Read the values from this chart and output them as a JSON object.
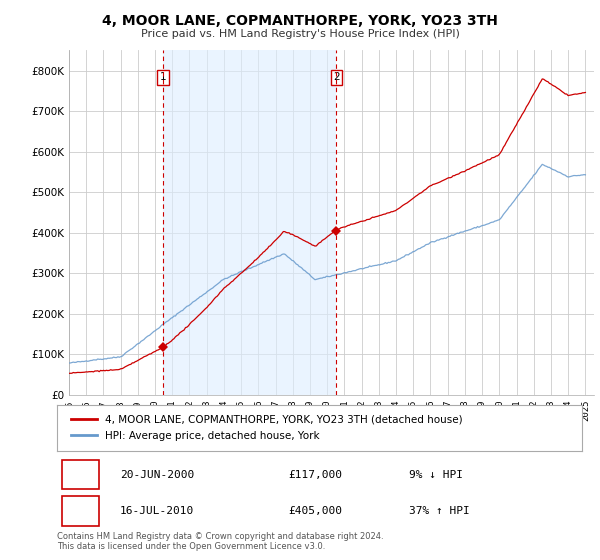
{
  "title": "4, MOOR LANE, COPMANTHORPE, YORK, YO23 3TH",
  "subtitle": "Price paid vs. HM Land Registry's House Price Index (HPI)",
  "ylim": [
    0,
    850000
  ],
  "xlim_start": 1995.0,
  "xlim_end": 2025.5,
  "property_color": "#cc0000",
  "hpi_color": "#6699cc",
  "shade_color": "#ddeeff",
  "property_label": "4, MOOR LANE, COPMANTHORPE, YORK, YO23 3TH (detached house)",
  "hpi_label": "HPI: Average price, detached house, York",
  "sale1_date": 2000.46,
  "sale1_price": 117000,
  "sale2_date": 2010.54,
  "sale2_price": 405000,
  "table_entries": [
    {
      "num": "1",
      "date": "20-JUN-2000",
      "price": "£117,000",
      "hpi": "9% ↓ HPI"
    },
    {
      "num": "2",
      "date": "16-JUL-2010",
      "price": "£405,000",
      "hpi": "37% ↑ HPI"
    }
  ],
  "footnote": "Contains HM Land Registry data © Crown copyright and database right 2024.\nThis data is licensed under the Open Government Licence v3.0.",
  "background_color": "#ffffff",
  "grid_color": "#cccccc",
  "xtick_years": [
    1995,
    1996,
    1997,
    1998,
    1999,
    2000,
    2001,
    2002,
    2003,
    2004,
    2005,
    2006,
    2007,
    2008,
    2009,
    2010,
    2011,
    2012,
    2013,
    2014,
    2015,
    2016,
    2017,
    2018,
    2019,
    2020,
    2021,
    2022,
    2023,
    2024,
    2025
  ]
}
